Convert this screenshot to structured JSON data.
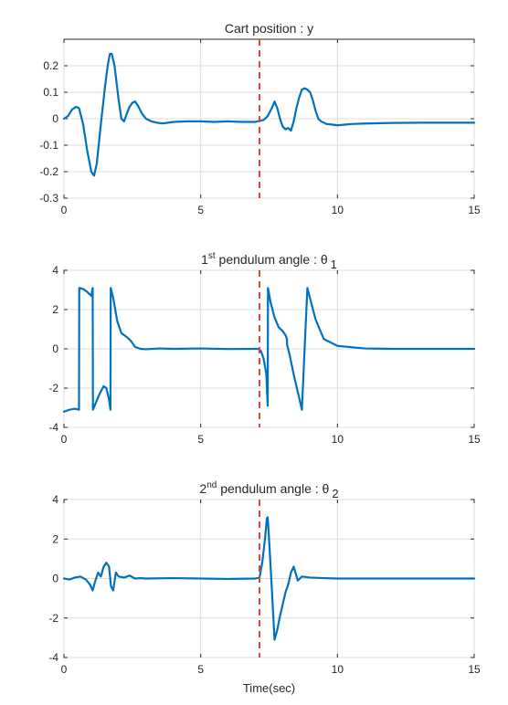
{
  "chart_data": [
    {
      "type": "line",
      "title": "Cart position : y",
      "title_sup": "",
      "title_sub": "",
      "xlabel": "",
      "ylabel": "",
      "xlim": [
        0,
        15
      ],
      "ylim": [
        -0.3,
        0.3
      ],
      "xticks": [
        0,
        5,
        10,
        15
      ],
      "yticks": [
        -0.3,
        -0.2,
        -0.1,
        0,
        0.1,
        0.2
      ],
      "ytick_labels": [
        "-0.3",
        "-0.2",
        "-0.1",
        "0",
        "0.1",
        "0.2"
      ],
      "grid": true,
      "line_color": "#0072BD",
      "marker_line": {
        "x": 7.15,
        "color": "#e8403a",
        "style": "dashed"
      },
      "series": [
        {
          "x": [
            0,
            0.15,
            0.3,
            0.45,
            0.55,
            0.7,
            0.85,
            1.0,
            1.1,
            1.2,
            1.35,
            1.5,
            1.6,
            1.68,
            1.75,
            1.85,
            2.0,
            2.1,
            2.2,
            2.3,
            2.4,
            2.5,
            2.6,
            2.7,
            2.85,
            3.0,
            3.2,
            3.4,
            3.6,
            3.8,
            4.0,
            4.5,
            5.0,
            5.5,
            6.0,
            6.5,
            7.0,
            7.15,
            7.3,
            7.45,
            7.6,
            7.7,
            7.8,
            7.9,
            8.0,
            8.1,
            8.2,
            8.3,
            8.4,
            8.5,
            8.6,
            8.7,
            8.8,
            8.9,
            9.0,
            9.1,
            9.2,
            9.3,
            9.4,
            9.6,
            9.8,
            10.0,
            10.5,
            11.0,
            12.0,
            13.0,
            14.0,
            15.0
          ],
          "y": [
            0,
            0.01,
            0.035,
            0.045,
            0.04,
            -0.02,
            -0.12,
            -0.2,
            -0.215,
            -0.17,
            -0.02,
            0.12,
            0.2,
            0.245,
            0.245,
            0.2,
            0.07,
            0.0,
            -0.01,
            0.02,
            0.045,
            0.06,
            0.065,
            0.05,
            0.02,
            0.0,
            -0.01,
            -0.015,
            -0.018,
            -0.015,
            -0.012,
            -0.01,
            -0.01,
            -0.012,
            -0.01,
            -0.012,
            -0.012,
            -0.008,
            -0.005,
            0.01,
            0.04,
            0.065,
            0.04,
            0.0,
            -0.03,
            -0.04,
            -0.035,
            -0.045,
            -0.01,
            0.04,
            0.08,
            0.11,
            0.115,
            0.11,
            0.1,
            0.07,
            0.03,
            0.0,
            -0.01,
            -0.02,
            -0.022,
            -0.025,
            -0.02,
            -0.018,
            -0.016,
            -0.015,
            -0.015,
            -0.015
          ]
        }
      ]
    },
    {
      "type": "line",
      "title": " pendulum angle : θ",
      "title_sup": "1",
      "title_sup_word": "st",
      "title_sub": "1",
      "xlabel": "",
      "ylabel": "",
      "xlim": [
        0,
        15
      ],
      "ylim": [
        -4,
        4
      ],
      "xticks": [
        0,
        5,
        10,
        15
      ],
      "yticks": [
        -4,
        -2,
        0,
        2,
        4
      ],
      "ytick_labels": [
        "-4",
        "-2",
        "0",
        "2",
        "4"
      ],
      "grid": true,
      "line_color": "#0072BD",
      "marker_line": {
        "x": 7.15,
        "color": "#e8403a",
        "style": "dashed"
      },
      "series": [
        {
          "x": [
            0,
            0.2,
            0.4,
            0.55,
            0.56,
            0.7,
            0.85,
            1.0,
            1.05,
            1.06,
            1.15,
            1.3,
            1.45,
            1.55,
            1.65,
            1.7,
            1.71,
            1.8,
            1.95,
            2.1,
            2.3,
            2.45,
            2.6,
            2.8,
            3.0,
            3.5,
            4.0,
            5.0,
            6.0,
            7.0,
            7.1,
            7.2,
            7.3,
            7.4,
            7.45,
            7.46,
            7.55,
            7.7,
            7.85,
            8.0,
            8.1,
            8.15,
            8.16,
            8.25,
            8.4,
            8.55,
            8.7,
            8.9,
            9.2,
            9.5,
            10.0,
            11.0,
            12.0,
            13.0,
            14.0,
            15.0
          ],
          "y": [
            -3.2,
            -3.1,
            -3.05,
            -3.1,
            3.1,
            3.05,
            2.9,
            2.7,
            3.1,
            -3.1,
            -2.8,
            -2.3,
            -1.9,
            -2.0,
            -2.6,
            -3.1,
            3.1,
            2.6,
            1.4,
            0.8,
            0.6,
            0.4,
            0.1,
            0.0,
            -0.02,
            0.02,
            0.0,
            0.02,
            -0.01,
            0.0,
            0.0,
            -0.1,
            -0.5,
            -1.3,
            -2.9,
            3.1,
            2.4,
            1.6,
            1.1,
            0.9,
            0.7,
            0.5,
            0.2,
            -0.3,
            -1.3,
            -2.2,
            -3.1,
            3.1,
            1.5,
            0.5,
            0.15,
            0.02,
            0.0,
            0.0,
            0.0,
            0.0
          ]
        }
      ]
    },
    {
      "type": "line",
      "title": " pendulum angle : θ",
      "title_sup": "2",
      "title_sup_word": "nd",
      "title_sub": "2",
      "xlabel": "Time(sec)",
      "ylabel": "",
      "xlim": [
        0,
        15
      ],
      "ylim": [
        -4,
        4
      ],
      "xticks": [
        0,
        5,
        10,
        15
      ],
      "yticks": [
        -4,
        -2,
        0,
        2,
        4
      ],
      "ytick_labels": [
        "-4",
        "-2",
        "0",
        "2",
        "4"
      ],
      "grid": true,
      "line_color": "#0072BD",
      "marker_line": {
        "x": 7.15,
        "color": "#e8403a",
        "style": "dashed"
      },
      "series": [
        {
          "x": [
            0,
            0.2,
            0.4,
            0.6,
            0.8,
            0.95,
            1.05,
            1.15,
            1.25,
            1.35,
            1.45,
            1.55,
            1.65,
            1.72,
            1.8,
            1.9,
            2.0,
            2.2,
            2.4,
            2.6,
            2.8,
            3.0,
            4.0,
            5.0,
            6.0,
            7.0,
            7.15,
            7.25,
            7.35,
            7.42,
            7.45,
            7.5,
            7.6,
            7.7,
            7.8,
            7.9,
            8.0,
            8.1,
            8.2,
            8.3,
            8.4,
            8.55,
            8.7,
            9.0,
            9.5,
            10.0,
            11.0,
            12.0,
            13.0,
            14.0,
            15.0
          ],
          "y": [
            0.0,
            -0.05,
            0.05,
            0.1,
            -0.05,
            -0.3,
            -0.6,
            -0.1,
            0.3,
            0.1,
            0.6,
            0.8,
            0.6,
            -0.4,
            -0.6,
            0.3,
            0.1,
            0.05,
            0.15,
            0.0,
            0.02,
            0.0,
            0.02,
            0.0,
            -0.02,
            0.0,
            0.05,
            0.8,
            2.0,
            3.05,
            3.1,
            2.0,
            -0.5,
            -3.1,
            -2.6,
            -1.9,
            -1.3,
            -0.7,
            -0.3,
            0.3,
            0.6,
            -0.1,
            0.1,
            0.05,
            0.02,
            0.0,
            0.0,
            0.0,
            0.0,
            0.0,
            0.0
          ]
        }
      ]
    }
  ]
}
